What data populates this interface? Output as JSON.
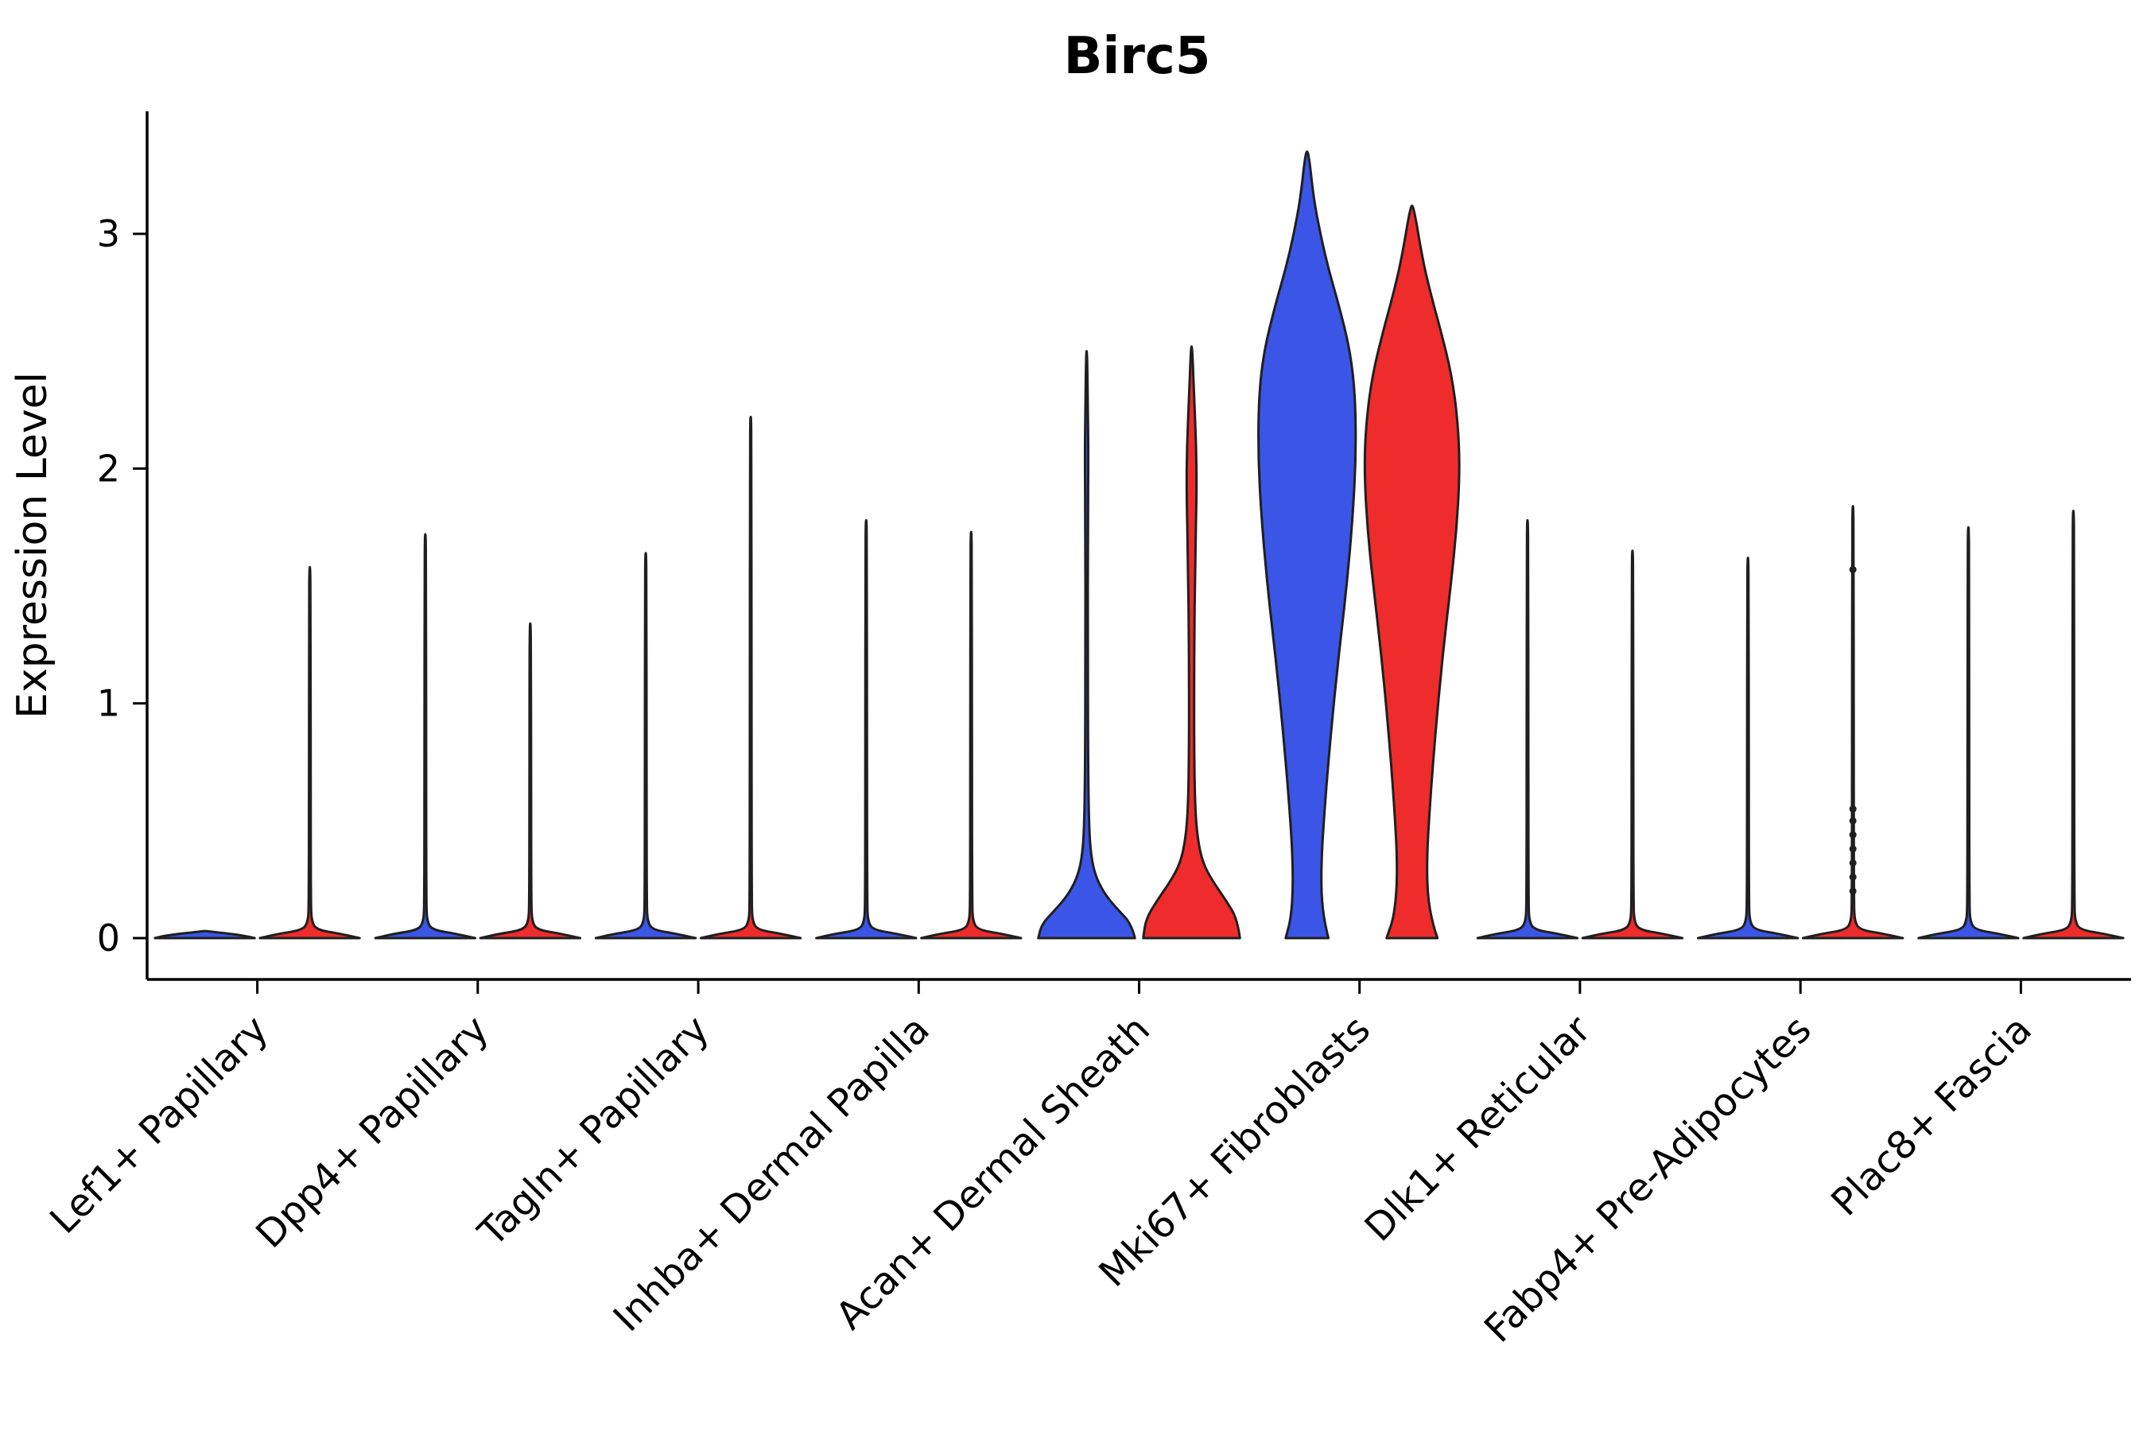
{
  "chart_data": {
    "type": "violin",
    "title": "Birc5",
    "ylabel": "Expression Level",
    "xlabel": "",
    "yticks": [
      0,
      1,
      2,
      3
    ],
    "ylim": [
      0,
      3.45
    ],
    "grid": false,
    "legend": "none",
    "group_colors": {
      "blue": "#3B55E6",
      "red": "#EE2C2C"
    },
    "outline_color": "#1f1f1f",
    "categories": [
      "Lef1+ Papillary",
      "Dpp4+ Papillary",
      "Tagln+ Papillary",
      "Inhba+ Dermal Papilla",
      "Acan+ Dermal Sheath",
      "Mki67+ Fibroblasts",
      "Dlk1+ Reticular",
      "Fabp4+ Pre-Adipocytes",
      "Plac8+ Fascia"
    ],
    "violins": [
      {
        "category": "Lef1+ Papillary",
        "pair": [
          {
            "group": "blue",
            "max": 0.03,
            "profile": [
              [
                0,
                0.98
              ],
              [
                0.012,
                0.75
              ],
              [
                0.03,
                0.02
              ]
            ],
            "points": []
          },
          {
            "group": "red",
            "max": 1.58,
            "profile": [
              [
                0,
                0.98
              ],
              [
                0.018,
                0.62
              ],
              [
                0.035,
                0.14
              ],
              [
                0.07,
                0.035
              ],
              [
                0.15,
                0.02
              ],
              [
                0.7,
                0.016
              ],
              [
                1.45,
                0.014
              ],
              [
                1.58,
                0.007
              ]
            ],
            "points": []
          }
        ]
      },
      {
        "category": "Dpp4+ Papillary",
        "pair": [
          {
            "group": "blue",
            "max": 1.72,
            "profile": [
              [
                0,
                0.98
              ],
              [
                0.018,
                0.62
              ],
              [
                0.035,
                0.14
              ],
              [
                0.07,
                0.035
              ],
              [
                0.15,
                0.02
              ],
              [
                0.78,
                0.016
              ],
              [
                1.6,
                0.014
              ],
              [
                1.72,
                0.007
              ]
            ],
            "points": []
          },
          {
            "group": "red",
            "max": 1.34,
            "profile": [
              [
                0,
                0.98
              ],
              [
                0.018,
                0.62
              ],
              [
                0.035,
                0.14
              ],
              [
                0.07,
                0.035
              ],
              [
                0.15,
                0.02
              ],
              [
                0.6,
                0.016
              ],
              [
                1.22,
                0.014
              ],
              [
                1.34,
                0.007
              ]
            ],
            "points": []
          }
        ]
      },
      {
        "category": "Tagln+ Papillary",
        "pair": [
          {
            "group": "blue",
            "max": 1.64,
            "profile": [
              [
                0,
                0.98
              ],
              [
                0.018,
                0.62
              ],
              [
                0.035,
                0.14
              ],
              [
                0.07,
                0.035
              ],
              [
                0.15,
                0.02
              ],
              [
                0.74,
                0.016
              ],
              [
                1.52,
                0.014
              ],
              [
                1.64,
                0.007
              ]
            ],
            "points": []
          },
          {
            "group": "red",
            "max": 2.22,
            "profile": [
              [
                0,
                0.98
              ],
              [
                0.018,
                0.62
              ],
              [
                0.035,
                0.14
              ],
              [
                0.07,
                0.035
              ],
              [
                0.15,
                0.02
              ],
              [
                1.0,
                0.016
              ],
              [
                2.1,
                0.014
              ],
              [
                2.22,
                0.007
              ]
            ],
            "points": []
          }
        ]
      },
      {
        "category": "Inhba+ Dermal Papilla",
        "pair": [
          {
            "group": "blue",
            "max": 1.78,
            "profile": [
              [
                0,
                0.98
              ],
              [
                0.018,
                0.62
              ],
              [
                0.035,
                0.14
              ],
              [
                0.07,
                0.035
              ],
              [
                0.15,
                0.02
              ],
              [
                0.8,
                0.016
              ],
              [
                1.66,
                0.014
              ],
              [
                1.78,
                0.007
              ]
            ],
            "points": []
          },
          {
            "group": "red",
            "max": 1.73,
            "profile": [
              [
                0,
                0.98
              ],
              [
                0.018,
                0.62
              ],
              [
                0.035,
                0.14
              ],
              [
                0.07,
                0.035
              ],
              [
                0.15,
                0.02
              ],
              [
                0.78,
                0.016
              ],
              [
                1.6,
                0.014
              ],
              [
                1.73,
                0.007
              ]
            ],
            "points": []
          }
        ]
      },
      {
        "category": "Acan+ Dermal Sheath",
        "pair": [
          {
            "group": "blue",
            "max": 2.5,
            "profile": [
              [
                0,
                0.95
              ],
              [
                0.06,
                0.88
              ],
              [
                0.12,
                0.62
              ],
              [
                0.18,
                0.38
              ],
              [
                0.25,
                0.2
              ],
              [
                0.33,
                0.1
              ],
              [
                0.45,
                0.05
              ],
              [
                0.7,
                0.03
              ],
              [
                1.2,
                0.022
              ],
              [
                1.8,
                0.025
              ],
              [
                2.05,
                0.035
              ],
              [
                2.25,
                0.025
              ],
              [
                2.5,
                0.01
              ]
            ],
            "points": []
          },
          {
            "group": "red",
            "max": 2.52,
            "profile": [
              [
                0,
                0.95
              ],
              [
                0.08,
                0.9
              ],
              [
                0.16,
                0.68
              ],
              [
                0.24,
                0.42
              ],
              [
                0.32,
                0.22
              ],
              [
                0.42,
                0.12
              ],
              [
                0.55,
                0.07
              ],
              [
                0.8,
                0.05
              ],
              [
                1.2,
                0.05
              ],
              [
                1.6,
                0.07
              ],
              [
                1.9,
                0.1
              ],
              [
                2.1,
                0.09
              ],
              [
                2.3,
                0.05
              ],
              [
                2.52,
                0.012
              ]
            ],
            "points": []
          }
        ]
      },
      {
        "category": "Mki67+ Fibroblasts",
        "pair": [
          {
            "group": "blue",
            "max": 3.35,
            "profile": [
              [
                0,
                0.42
              ],
              [
                0.1,
                0.3
              ],
              [
                0.3,
                0.27
              ],
              [
                0.6,
                0.36
              ],
              [
                0.9,
                0.48
              ],
              [
                1.2,
                0.62
              ],
              [
                1.5,
                0.78
              ],
              [
                1.8,
                0.9
              ],
              [
                2.05,
                0.96
              ],
              [
                2.3,
                0.95
              ],
              [
                2.5,
                0.85
              ],
              [
                2.7,
                0.62
              ],
              [
                2.85,
                0.42
              ],
              [
                3.0,
                0.26
              ],
              [
                3.15,
                0.13
              ],
              [
                3.35,
                0.03
              ]
            ],
            "points": []
          },
          {
            "group": "red",
            "max": 3.12,
            "profile": [
              [
                0,
                0.5
              ],
              [
                0.1,
                0.34
              ],
              [
                0.3,
                0.28
              ],
              [
                0.6,
                0.36
              ],
              [
                0.9,
                0.47
              ],
              [
                1.2,
                0.6
              ],
              [
                1.5,
                0.76
              ],
              [
                1.75,
                0.88
              ],
              [
                2.0,
                0.94
              ],
              [
                2.2,
                0.9
              ],
              [
                2.4,
                0.78
              ],
              [
                2.6,
                0.55
              ],
              [
                2.75,
                0.36
              ],
              [
                2.9,
                0.2
              ],
              [
                3.12,
                0.03
              ]
            ],
            "points": []
          }
        ]
      },
      {
        "category": "Dlk1+ Reticular",
        "pair": [
          {
            "group": "blue",
            "max": 1.78,
            "profile": [
              [
                0,
                0.98
              ],
              [
                0.018,
                0.62
              ],
              [
                0.035,
                0.14
              ],
              [
                0.07,
                0.035
              ],
              [
                0.15,
                0.02
              ],
              [
                0.8,
                0.016
              ],
              [
                1.66,
                0.014
              ],
              [
                1.78,
                0.007
              ]
            ],
            "points": []
          },
          {
            "group": "red",
            "max": 1.65,
            "profile": [
              [
                0,
                0.98
              ],
              [
                0.018,
                0.62
              ],
              [
                0.035,
                0.14
              ],
              [
                0.07,
                0.035
              ],
              [
                0.15,
                0.02
              ],
              [
                0.74,
                0.016
              ],
              [
                1.53,
                0.014
              ],
              [
                1.65,
                0.007
              ]
            ],
            "points": []
          }
        ]
      },
      {
        "category": "Fabp4+ Pre-Adipocytes",
        "pair": [
          {
            "group": "blue",
            "max": 1.62,
            "profile": [
              [
                0,
                0.98
              ],
              [
                0.018,
                0.62
              ],
              [
                0.035,
                0.14
              ],
              [
                0.07,
                0.035
              ],
              [
                0.15,
                0.02
              ],
              [
                0.72,
                0.016
              ],
              [
                1.5,
                0.014
              ],
              [
                1.62,
                0.007
              ]
            ],
            "points": []
          },
          {
            "group": "red",
            "max": 1.84,
            "profile": [
              [
                0,
                0.98
              ],
              [
                0.018,
                0.62
              ],
              [
                0.035,
                0.14
              ],
              [
                0.07,
                0.035
              ],
              [
                0.15,
                0.02
              ],
              [
                0.82,
                0.016
              ],
              [
                1.72,
                0.014
              ],
              [
                1.84,
                0.007
              ]
            ],
            "points": [
              0.2,
              0.26,
              0.32,
              0.38,
              0.44,
              0.5,
              0.55,
              1.57
            ]
          }
        ]
      },
      {
        "category": "Plac8+ Fascia",
        "pair": [
          {
            "group": "blue",
            "max": 1.75,
            "profile": [
              [
                0,
                0.98
              ],
              [
                0.018,
                0.62
              ],
              [
                0.035,
                0.14
              ],
              [
                0.07,
                0.035
              ],
              [
                0.15,
                0.02
              ],
              [
                0.78,
                0.016
              ],
              [
                1.62,
                0.014
              ],
              [
                1.75,
                0.007
              ]
            ],
            "points": []
          },
          {
            "group": "red",
            "max": 1.82,
            "profile": [
              [
                0,
                0.98
              ],
              [
                0.018,
                0.62
              ],
              [
                0.035,
                0.14
              ],
              [
                0.07,
                0.035
              ],
              [
                0.15,
                0.02
              ],
              [
                0.82,
                0.016
              ],
              [
                1.7,
                0.014
              ],
              [
                1.82,
                0.007
              ]
            ],
            "points": []
          }
        ]
      }
    ]
  }
}
